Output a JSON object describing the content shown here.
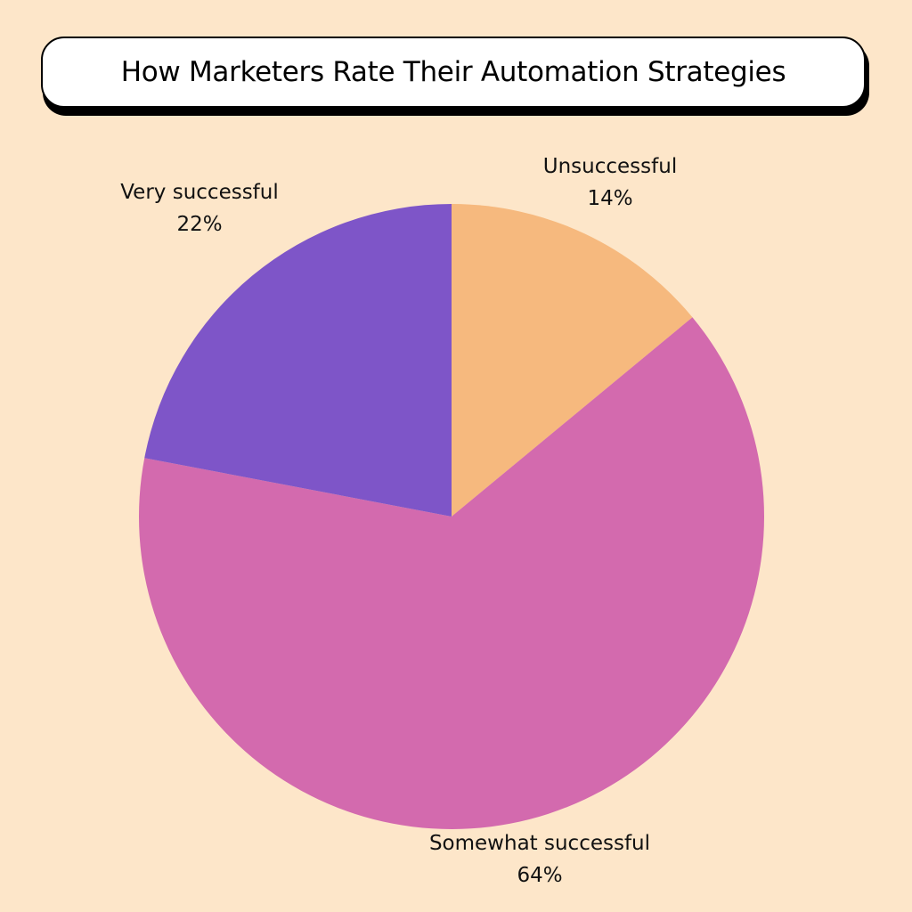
{
  "title": "How Marketers Rate Their Automation Strategies",
  "chart_data": {
    "type": "pie",
    "title": "How Marketers Rate Their Automation Strategies",
    "categories": [
      "Unsuccessful",
      "Somewhat successful",
      "Very successful"
    ],
    "values": [
      14,
      64,
      22
    ],
    "labels": [
      "14%",
      "64%",
      "22%"
    ],
    "colors": [
      "#f6b97e",
      "#d36aae",
      "#7e55c8"
    ],
    "start": "12 o'clock",
    "direction": "clockwise",
    "legend": "none"
  }
}
